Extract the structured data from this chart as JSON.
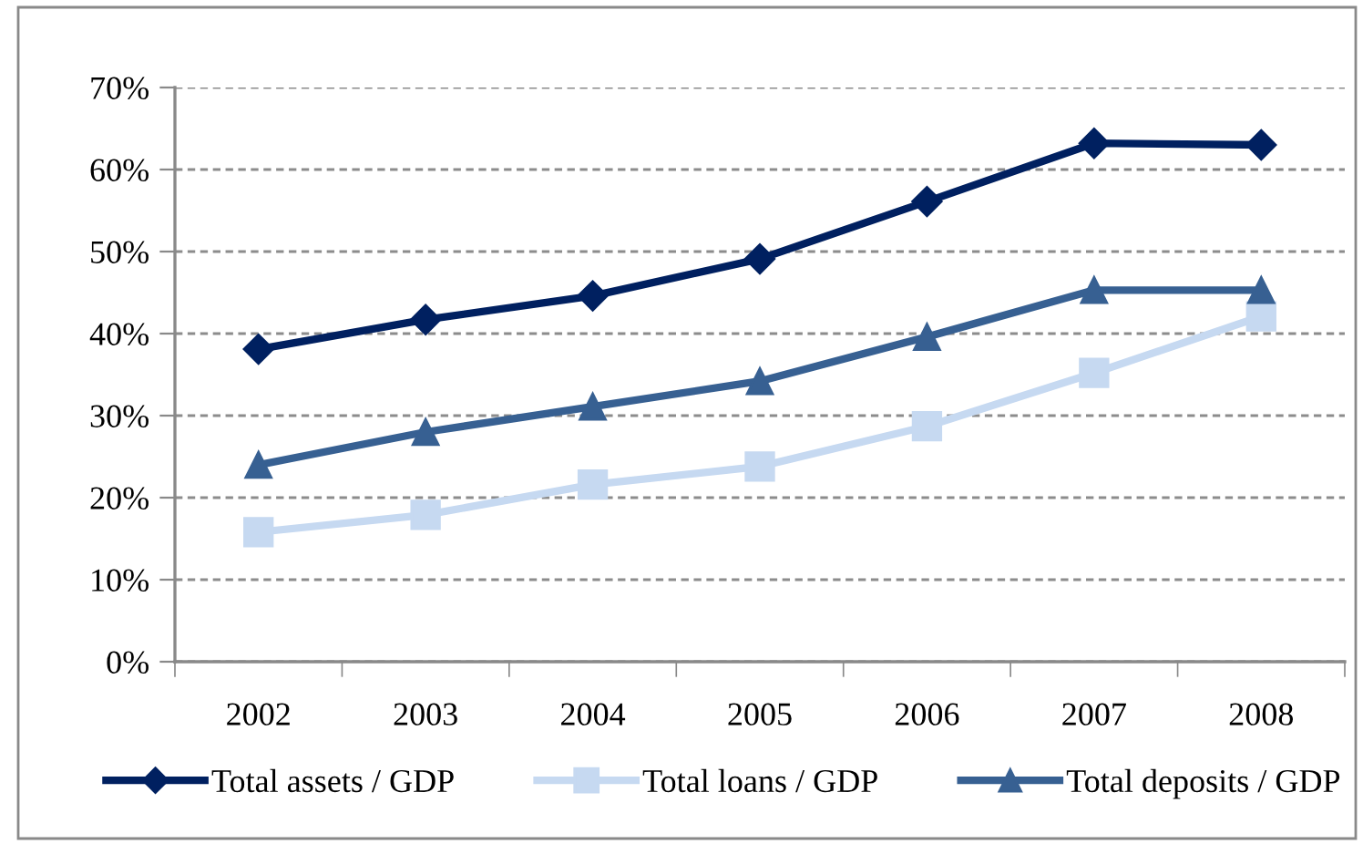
{
  "chart_data": {
    "type": "line",
    "categories": [
      "2002",
      "2003",
      "2004",
      "2005",
      "2006",
      "2007",
      "2008"
    ],
    "series": [
      {
        "name": "Total assets / GDP",
        "color": "#002060",
        "marker": "diamond",
        "values": [
          38.1,
          41.7,
          44.6,
          49.1,
          56.1,
          63.2,
          63.0
        ]
      },
      {
        "name": "Total loans / GDP",
        "color": "#c6d9f1",
        "marker": "square",
        "values": [
          15.8,
          17.9,
          21.6,
          23.8,
          28.7,
          35.2,
          42.1
        ]
      },
      {
        "name": "Total deposits / GDP",
        "color": "#376092",
        "marker": "triangle",
        "values": [
          24.0,
          28.0,
          31.1,
          34.2,
          39.6,
          45.3,
          45.3
        ]
      }
    ],
    "ylim": [
      0,
      70
    ],
    "yticks": [
      {
        "value": 0,
        "label": "0%"
      },
      {
        "value": 10,
        "label": "10%"
      },
      {
        "value": 20,
        "label": "20%"
      },
      {
        "value": 30,
        "label": "30%"
      },
      {
        "value": 40,
        "label": "40%"
      },
      {
        "value": 50,
        "label": "50%"
      },
      {
        "value": 60,
        "label": "60%"
      },
      {
        "value": 70,
        "label": "70%"
      }
    ],
    "grid": "y",
    "legend": "bottom",
    "line_style": "solid"
  }
}
